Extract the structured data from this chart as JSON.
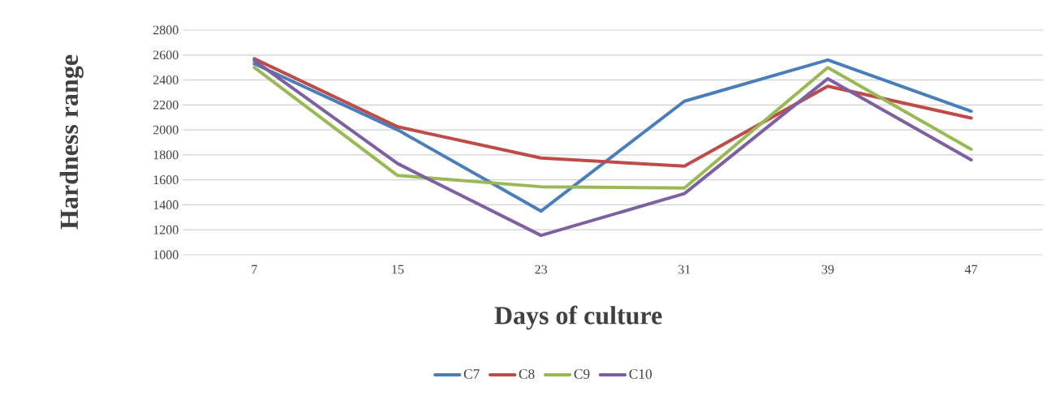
{
  "chart_data": {
    "type": "line",
    "xlabel": "Days of culture",
    "ylabel": "Hardness range",
    "categories": [
      "7",
      "15",
      "23",
      "31",
      "39",
      "47"
    ],
    "series": [
      {
        "name": "C7",
        "color": "#4a7ebb",
        "values": [
          2530,
          2000,
          1350,
          2230,
          2560,
          2150
        ]
      },
      {
        "name": "C8",
        "color": "#be4b48",
        "values": [
          2570,
          2025,
          1775,
          1710,
          2350,
          2095
        ]
      },
      {
        "name": "C9",
        "color": "#98b954",
        "values": [
          2500,
          1635,
          1545,
          1535,
          2500,
          1845
        ]
      },
      {
        "name": "C10",
        "color": "#7d60a0",
        "values": [
          2555,
          1730,
          1155,
          1490,
          2410,
          1760
        ]
      }
    ],
    "ylim": [
      1000,
      2800
    ],
    "yticks": [
      1000,
      1200,
      1400,
      1600,
      1800,
      2000,
      2200,
      2400,
      2600,
      2800
    ],
    "grid": "y",
    "legend": "bottom"
  }
}
